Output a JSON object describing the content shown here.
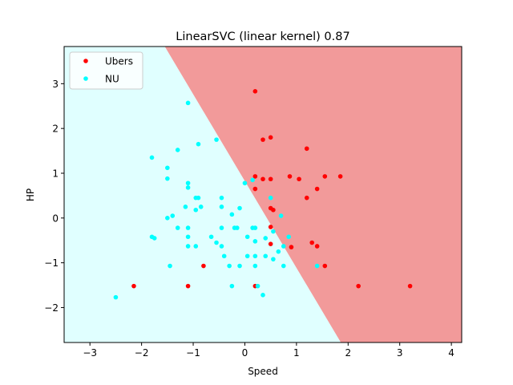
{
  "chart_data": {
    "type": "scatter",
    "title": "LinearSVC (linear kernel) 0.87",
    "xlabel": "Speed",
    "ylabel": "HP",
    "xlim": [
      -3.5,
      4.2
    ],
    "ylim": [
      -2.78,
      3.83
    ],
    "x_ticks": [
      -3,
      -2,
      -1,
      0,
      1,
      2,
      3,
      4
    ],
    "y_ticks": [
      -2,
      -1,
      0,
      1,
      2,
      3
    ],
    "grid": false,
    "legend_position": "top-left",
    "decision_boundary": {
      "points": [
        [
          -1.55,
          3.83
        ],
        [
          1.86,
          -2.78
        ]
      ],
      "region_left": {
        "label": "NU",
        "color": "#e0ffff"
      },
      "region_right": {
        "label": "Ubers",
        "color": "#f29a9a"
      }
    },
    "series": [
      {
        "name": "Ubers",
        "color": "#ff0000",
        "points": [
          [
            0.2,
            2.83
          ],
          [
            0.5,
            1.8
          ],
          [
            0.35,
            1.75
          ],
          [
            1.2,
            1.55
          ],
          [
            1.85,
            0.93
          ],
          [
            1.55,
            0.93
          ],
          [
            1.05,
            0.87
          ],
          [
            0.87,
            0.93
          ],
          [
            0.5,
            0.87
          ],
          [
            0.35,
            0.87
          ],
          [
            0.2,
            0.93
          ],
          [
            0.2,
            0.65
          ],
          [
            1.4,
            0.65
          ],
          [
            1.2,
            0.45
          ],
          [
            0.5,
            0.22
          ],
          [
            0.55,
            0.18
          ],
          [
            0.5,
            -0.2
          ],
          [
            1.3,
            -0.55
          ],
          [
            1.4,
            -0.63
          ],
          [
            0.5,
            -0.58
          ],
          [
            0.9,
            -0.65
          ],
          [
            1.55,
            -1.07
          ],
          [
            -0.8,
            -1.07
          ],
          [
            -2.15,
            -1.52
          ],
          [
            -1.1,
            -1.52
          ],
          [
            0.2,
            -1.52
          ],
          [
            2.2,
            -1.52
          ],
          [
            3.2,
            -1.52
          ]
        ]
      },
      {
        "name": "NU",
        "color": "#00ffff",
        "points": [
          [
            -1.1,
            2.57
          ],
          [
            -0.9,
            1.65
          ],
          [
            -1.3,
            1.52
          ],
          [
            -0.55,
            1.75
          ],
          [
            -1.8,
            1.35
          ],
          [
            -1.5,
            1.12
          ],
          [
            -1.5,
            0.88
          ],
          [
            -1.1,
            0.78
          ],
          [
            -1.1,
            0.68
          ],
          [
            -0.95,
            0.45
          ],
          [
            -0.9,
            0.45
          ],
          [
            -0.45,
            0.45
          ],
          [
            -0.95,
            0.18
          ],
          [
            -1.15,
            0.25
          ],
          [
            -0.85,
            0.25
          ],
          [
            -0.45,
            0.25
          ],
          [
            -0.25,
            0.08
          ],
          [
            -0.1,
            0.22
          ],
          [
            0.0,
            0.78
          ],
          [
            0.15,
            0.85
          ],
          [
            0.5,
            0.45
          ],
          [
            0.7,
            0.05
          ],
          [
            -1.5,
            0.0
          ],
          [
            -1.4,
            0.05
          ],
          [
            -1.3,
            -0.22
          ],
          [
            -1.1,
            -0.22
          ],
          [
            -0.45,
            -0.22
          ],
          [
            -0.2,
            -0.22
          ],
          [
            0.15,
            -0.22
          ],
          [
            0.2,
            -0.22
          ],
          [
            0.55,
            -0.3
          ],
          [
            -1.8,
            -0.42
          ],
          [
            -1.75,
            -0.45
          ],
          [
            -1.1,
            -0.42
          ],
          [
            -0.65,
            -0.42
          ],
          [
            -0.55,
            -0.55
          ],
          [
            0.05,
            -0.42
          ],
          [
            0.2,
            -0.52
          ],
          [
            0.4,
            -0.45
          ],
          [
            0.85,
            -0.42
          ],
          [
            -1.1,
            -0.63
          ],
          [
            -0.95,
            -0.63
          ],
          [
            -0.45,
            -0.63
          ],
          [
            -0.4,
            -0.85
          ],
          [
            0.05,
            -0.85
          ],
          [
            0.2,
            -0.85
          ],
          [
            0.4,
            -0.85
          ],
          [
            0.65,
            -0.75
          ],
          [
            0.75,
            -0.63
          ],
          [
            0.55,
            -0.92
          ],
          [
            0.75,
            -1.07
          ],
          [
            -1.45,
            -1.07
          ],
          [
            -0.3,
            -1.07
          ],
          [
            -0.1,
            -1.07
          ],
          [
            0.2,
            -1.07
          ],
          [
            1.4,
            -1.07
          ],
          [
            -0.25,
            -1.52
          ],
          [
            0.25,
            -1.52
          ],
          [
            0.35,
            -1.72
          ],
          [
            -2.5,
            -1.77
          ],
          [
            -0.15,
            -0.22
          ]
        ]
      }
    ]
  }
}
